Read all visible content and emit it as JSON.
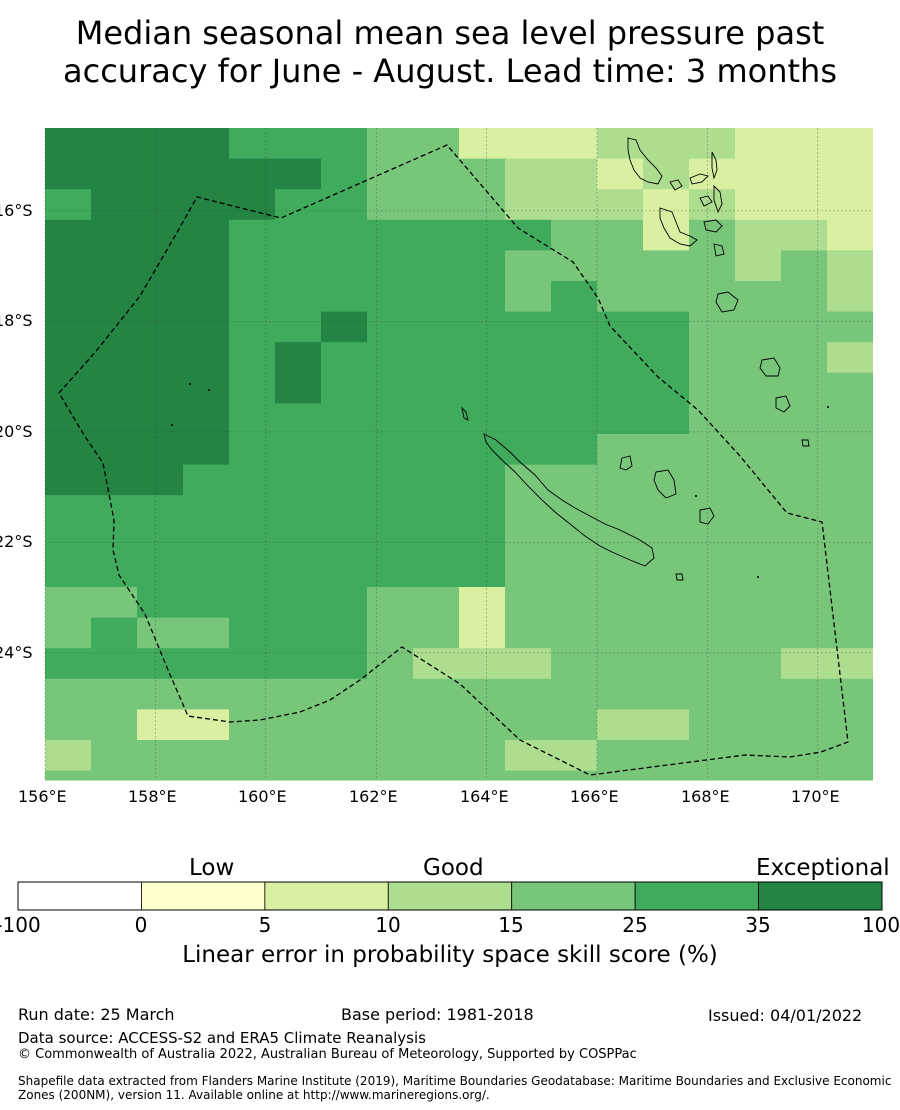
{
  "title_line1": "Median seasonal mean sea level pressure past",
  "title_line2": "accuracy for June - August. Lead time: 3 months",
  "map": {
    "lon_range": [
      156,
      171
    ],
    "lat_range": [
      -14.5,
      -26.3
    ],
    "x_ticks": [
      "156°E",
      "158°E",
      "160°E",
      "162°E",
      "164°E",
      "166°E",
      "168°E",
      "170°E"
    ],
    "y_ticks": [
      "16°S",
      "18°S",
      "20°S",
      "22°S",
      "24°S"
    ],
    "grid_lines": true
  },
  "colorbar": {
    "categories": [
      "Low",
      "Good",
      "Exceptional"
    ],
    "boundaries": [
      "-100",
      "0",
      "5",
      "10",
      "15",
      "25",
      "35",
      "100"
    ],
    "colors": [
      "#ffffff",
      "#ffffcc",
      "#d9f0a3",
      "#addd8e",
      "#78c679",
      "#41ab5d",
      "#238443"
    ],
    "title": "Linear error in probability space skill score (%)"
  },
  "footer": {
    "run_date": "Run date: 25 March",
    "base_period": "Base period: 1981-2018",
    "issued": "Issued: 04/01/2022",
    "data_source": "Data source: ACCESS-S2 and ERA5 Climate Reanalysis",
    "copyright": "© Commonwealth of Australia 2022, Australian Bureau of Meteorology, Supported by COSPPac",
    "shapefile_line1": "Shapefile data extracted from Flanders Marine Institute (2019), Maritime Boundaries Geodatabase: Maritime Boundaries and Exclusive Economic",
    "shapefile_line2": "Zones (200NM), version 11. Available online at http://www.marineregions.org/."
  }
}
